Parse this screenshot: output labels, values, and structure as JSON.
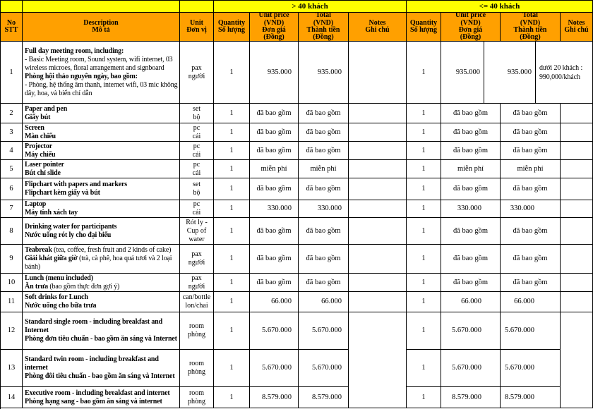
{
  "colors": {
    "header_bg": "#FFA000",
    "group_bg": "#FFFF00",
    "border": "#000000",
    "text": "#000000"
  },
  "header": {
    "groups": [
      {
        "label": "> 40 khách"
      },
      {
        "label": "<= 40 khách"
      }
    ],
    "columns": {
      "no": "No\nSTT",
      "description": "Description\nMô tả",
      "unit": "Unit\nĐơn vị",
      "quantity": "Quantity\nSố lượng",
      "unit_price": "Unit price\n(VND)\nĐơn giá\n(Đồng)",
      "total": "Total\n(VND)\nThành tiền\n(Đồng)",
      "notes": "Notes\nGhi chú"
    }
  },
  "rows": [
    {
      "no": "1",
      "description": [
        [
          {
            "t": "Full day meeting room, including:",
            "b": true
          }
        ],
        [
          {
            "t": "- Basic Meeting room, Sound system, wifi internet, 03 wireless microes, floral arrangement and signboard",
            "b": false
          }
        ],
        [
          {
            "t": "Phòng hội thảo nguyên ngày, bao gồm:",
            "b": true
          }
        ],
        [
          {
            "t": "- Phòng, hệ thống âm thanh, internet wifi, 03 mic không dây, hoa, và biển chỉ dẫn",
            "b": false
          }
        ]
      ],
      "unit": "pax\nngười",
      "gt40": {
        "quantity": "1",
        "unit_price": "935.000",
        "total": "935.000",
        "notes": ""
      },
      "lte40": {
        "quantity": "1",
        "unit_price": "935.000",
        "total": "935.000",
        "notes": "dưới 20 khách :\n990,000/khách"
      }
    },
    {
      "no": "2",
      "description": [
        [
          {
            "t": "Paper and pen",
            "b": true
          }
        ],
        [
          {
            "t": "Giấy bút",
            "b": true
          }
        ]
      ],
      "unit": "set\nbộ",
      "gt40": {
        "quantity": "1",
        "unit_price": "đã bao gồm",
        "total": "đã bao gồm",
        "notes": ""
      },
      "lte40": {
        "quantity": "1",
        "unit_price": "đã bao gồm",
        "total": "đã bao gồm",
        "notes": ""
      }
    },
    {
      "no": "3",
      "description": [
        [
          {
            "t": "Screen",
            "b": true
          }
        ],
        [
          {
            "t": "Màn chiếu",
            "b": true
          }
        ]
      ],
      "unit": "pc\ncái",
      "gt40": {
        "quantity": "1",
        "unit_price": "đã bao gồm",
        "total": "đã bao gồm",
        "notes": ""
      },
      "lte40": {
        "quantity": "1",
        "unit_price": "đã bao gồm",
        "total": "đã bao gồm",
        "notes": ""
      }
    },
    {
      "no": "4",
      "description": [
        [
          {
            "t": "Projector",
            "b": true
          }
        ],
        [
          {
            "t": "Máy chiếu",
            "b": true
          }
        ]
      ],
      "unit": "pc\ncái",
      "gt40": {
        "quantity": "1",
        "unit_price": "đã bao gồm",
        "total": "đã bao gồm",
        "notes": ""
      },
      "lte40": {
        "quantity": "1",
        "unit_price": "đã bao gồm",
        "total": "đã bao gồm",
        "notes": ""
      }
    },
    {
      "no": "5",
      "description": [
        [
          {
            "t": "Laser pointer",
            "b": true
          }
        ],
        [
          {
            "t": "Bút chỉ slide",
            "b": true
          }
        ]
      ],
      "unit": "pc\ncái",
      "gt40": {
        "quantity": "1",
        "unit_price": "miễn phí",
        "total": "miễn phí",
        "notes": ""
      },
      "lte40": {
        "quantity": "1",
        "unit_price": "miễn phí",
        "total": "miễn phí",
        "notes": ""
      }
    },
    {
      "no": "6",
      "description": [
        [
          {
            "t": "Flipchart with papers and markers",
            "b": true
          }
        ],
        [
          {
            "t": "Flipchart kèm giấy và bút",
            "b": true
          }
        ]
      ],
      "unit": "set\nbộ",
      "gt40": {
        "quantity": "1",
        "unit_price": "đã bao gồm",
        "total": "đã bao gồm",
        "notes": ""
      },
      "lte40": {
        "quantity": "1",
        "unit_price": "đã bao gồm",
        "total": "đã bao gồm",
        "notes": ""
      }
    },
    {
      "no": "7",
      "description": [
        [
          {
            "t": "Laptop",
            "b": true
          }
        ],
        [
          {
            "t": "Máy tính xách tay",
            "b": true
          }
        ]
      ],
      "unit": "pc\ncái",
      "gt40": {
        "quantity": "1",
        "unit_price": "330.000",
        "total": "330.000",
        "notes": ""
      },
      "lte40": {
        "quantity": "1",
        "unit_price": "330.000",
        "total": "330.000",
        "notes": ""
      }
    },
    {
      "no": "8",
      "description": [
        [
          {
            "t": "Drinking water for participants",
            "b": true
          }
        ],
        [
          {
            "t": "Nước uống rót ly cho đại biểu",
            "b": true
          }
        ]
      ],
      "unit": "Rót ly -\nCup of\nwater",
      "gt40": {
        "quantity": "1",
        "unit_price": "đã bao gồm",
        "total": "đã bao gồm",
        "notes": ""
      },
      "lte40": {
        "quantity": "1",
        "unit_price": "đã bao gồm",
        "total": "đã bao gồm",
        "notes": ""
      }
    },
    {
      "no": "9",
      "description": [
        [
          {
            "t": "Teabreak",
            "b": true
          },
          {
            "t": " (tea, coffee, fresh fruit and 2 kinds of cake)",
            "b": false
          }
        ],
        [
          {
            "t": "Giải khát giữa giờ",
            "b": true
          },
          {
            "t": " (trà, cà phê, hoa quả tươi và 2 loại bánh)",
            "b": false
          }
        ]
      ],
      "unit": "pax\nngười",
      "gt40": {
        "quantity": "1",
        "unit_price": "đã bao gồm",
        "total": "đã bao gồm",
        "notes": ""
      },
      "lte40": {
        "quantity": "1",
        "unit_price": "đã bao gồm",
        "total": "đã bao gồm",
        "notes": ""
      }
    },
    {
      "no": "10",
      "description": [
        [
          {
            "t": "Lunch (menu included)",
            "b": true
          }
        ],
        [
          {
            "t": "Ăn trưa",
            "b": true
          },
          {
            "t": " (bao gồm thực đơn gợi ý)",
            "b": false
          }
        ]
      ],
      "unit": "pax\nngười",
      "gt40": {
        "quantity": "1",
        "unit_price": "đã bao gồm",
        "total": "đã bao gồm",
        "notes": ""
      },
      "lte40": {
        "quantity": "1",
        "unit_price": "đã bao gồm",
        "total": "đã bao gồm",
        "notes": ""
      }
    },
    {
      "no": "11",
      "description": [
        [
          {
            "t": "Soft drinks for Lunch",
            "b": true
          }
        ],
        [
          {
            "t": "Nước uống cho bữa trưa",
            "b": true
          }
        ]
      ],
      "unit": "can/bottle\nlon/chai",
      "gt40": {
        "quantity": "1",
        "unit_price": "66.000",
        "total": "66.000",
        "notes": ""
      },
      "lte40": {
        "quantity": "1",
        "unit_price": "66.000",
        "total": "66.000",
        "notes": ""
      }
    },
    {
      "no": "12",
      "description": [
        [
          {
            "t": "Standard single room - including breakfast and Internet",
            "b": true
          }
        ],
        [
          {
            "t": "Phòng đơn tiêu chuẩn - bao gồm ăn sáng và Internet",
            "b": true
          }
        ]
      ],
      "unit": "room\nphòng",
      "gt40": {
        "quantity": "1",
        "unit_price": "5.670.000",
        "total": "5.670.000",
        "notes": ""
      },
      "lte40": {
        "quantity": "1",
        "unit_price": "5.670.000",
        "total": "5.670.000",
        "notes": ""
      }
    },
    {
      "no": "13",
      "description": [
        [
          {
            "t": "Standard twin room - including breakfast and internet",
            "b": true
          }
        ],
        [
          {
            "t": "Phòng đôi tiêu chuẩn - bao gồm ăn sáng và Internet",
            "b": true
          }
        ]
      ],
      "unit": "room\nphòng",
      "gt40": {
        "quantity": "1",
        "unit_price": "5.670.000",
        "total": "5.670.000",
        "notes": ""
      },
      "lte40": {
        "quantity": "1",
        "unit_price": "5.670.000",
        "total": "5.670.000",
        "notes": ""
      }
    },
    {
      "no": "14",
      "description": [
        [
          {
            "t": "Executive room - including breakfast and internet",
            "b": true
          }
        ],
        [
          {
            "t": "Phòng hạng sang - bao gồm ăn sáng và internet",
            "b": true
          }
        ]
      ],
      "unit": "room\nphòng",
      "gt40": {
        "quantity": "1",
        "unit_price": "8.579.000",
        "total": "8.579.000",
        "notes": ""
      },
      "lte40": {
        "quantity": "1",
        "unit_price": "8.579.000",
        "total": "8.579.000",
        "notes": ""
      }
    }
  ]
}
